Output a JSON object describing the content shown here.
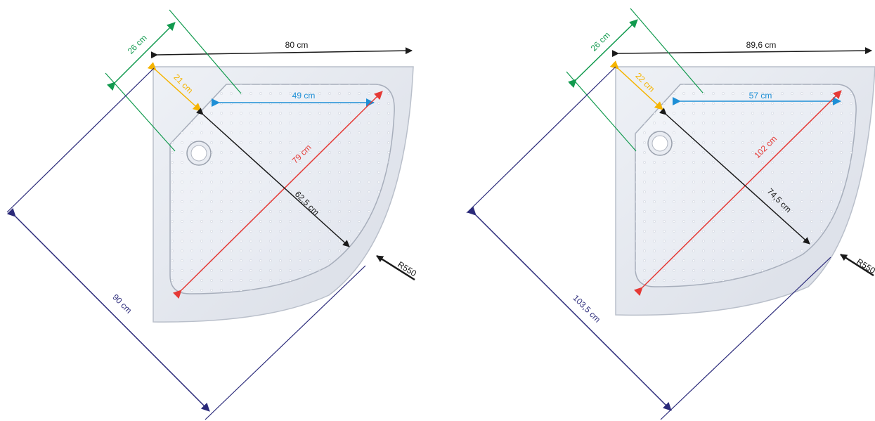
{
  "colors": {
    "black": "#1a1a1a",
    "green": "#119a4e",
    "orange": "#f5b400",
    "blue": "#1e8fd6",
    "red": "#e53935",
    "navy": "#2b2a7a"
  },
  "left": {
    "width": "80 cm",
    "corner_arm": "26 cm",
    "corner_small": "21 cm",
    "inner_width": "49 cm",
    "diagonal_long": "79 cm",
    "diagonal_inner": "62,5 cm",
    "diagonal_outer": "90 cm",
    "radius": "R550"
  },
  "right": {
    "width": "89,6 cm",
    "corner_arm": "26 cm",
    "corner_small": "22 cm",
    "inner_width": "57 cm",
    "diagonal_long": "102 cm",
    "diagonal_inner": "74,5 cm",
    "diagonal_outer": "103,5 cm",
    "radius": "R550"
  }
}
